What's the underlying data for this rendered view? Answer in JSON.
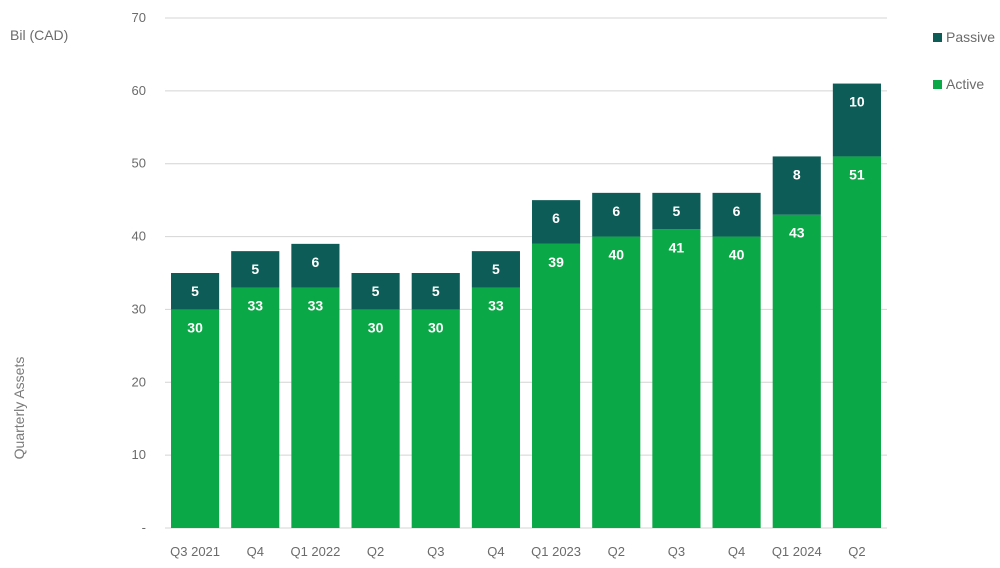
{
  "chart_data": {
    "type": "bar",
    "stacked": true,
    "unit_label": "Bil (CAD)",
    "ylabel": "Quarterly Assets",
    "ylim": [
      0,
      70
    ],
    "y_ticks": [
      "-",
      "10",
      "20",
      "30",
      "40",
      "50",
      "60",
      "70"
    ],
    "y_tick_values": [
      0,
      10,
      20,
      30,
      40,
      50,
      60,
      70
    ],
    "grid": true,
    "legend_position": "top-right",
    "categories": [
      "Q3 2021",
      "Q4",
      "Q1 2022",
      "Q2",
      "Q3",
      "Q4",
      "Q1 2023",
      "Q2",
      "Q3",
      "Q4",
      "Q1 2024",
      "Q2"
    ],
    "series": [
      {
        "name": "Active",
        "color": "#0aa846",
        "values": [
          30,
          33,
          33,
          30,
          30,
          33,
          39,
          40,
          41,
          40,
          43,
          51
        ]
      },
      {
        "name": "Passive",
        "color": "#0d5c57",
        "values": [
          5,
          5,
          6,
          5,
          5,
          5,
          6,
          6,
          5,
          6,
          8,
          10
        ]
      }
    ],
    "legend": [
      {
        "name": "Passive",
        "color": "#0d5c57"
      },
      {
        "name": "Active",
        "color": "#0aa846"
      }
    ]
  }
}
